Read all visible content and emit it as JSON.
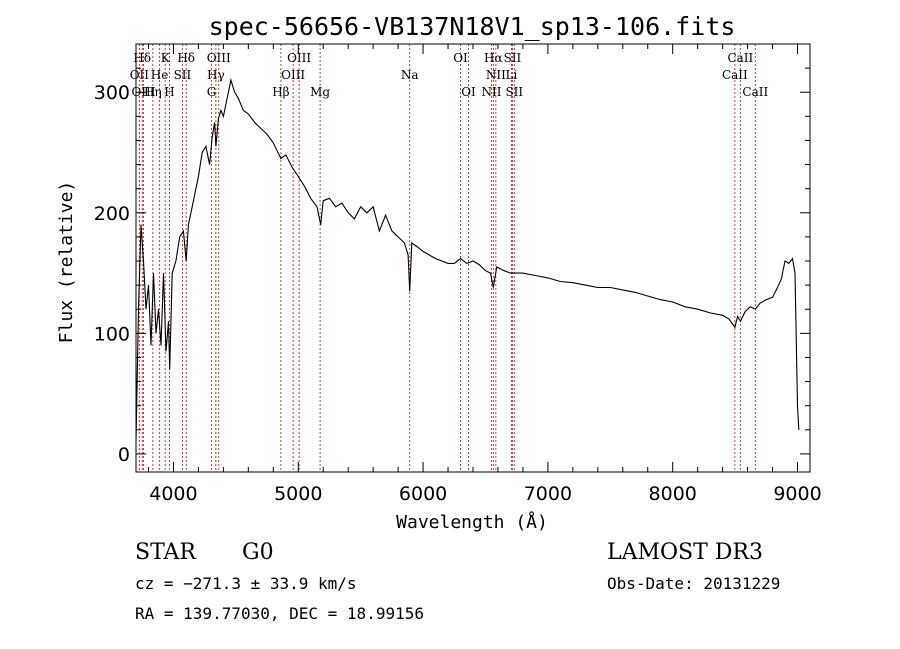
{
  "chart_data": {
    "type": "line",
    "title": "spec-56656-VB137N18V1_sp13-106.fits",
    "xlabel": "Wavelength (Å)",
    "ylabel": "Flux (relative)",
    "xlim": [
      3700,
      9100
    ],
    "ylim": [
      -15,
      340
    ],
    "xticks": [
      4000,
      5000,
      6000,
      7000,
      8000,
      9000
    ],
    "xtick_labels": [
      "4000",
      "5000",
      "6000",
      "7000",
      "8000",
      "9000"
    ],
    "yticks": [
      0,
      100,
      200,
      300
    ],
    "ytick_labels": [
      "0",
      "100",
      "200",
      "300"
    ],
    "grid": false,
    "series": [
      {
        "x": [
          3700,
          3720,
          3740,
          3760,
          3780,
          3800,
          3820,
          3840,
          3860,
          3880,
          3900,
          3920,
          3940,
          3960,
          3970,
          3990,
          4020,
          4050,
          4080,
          4102,
          4120,
          4150,
          4180,
          4200,
          4230,
          4260,
          4290,
          4310,
          4330,
          4340,
          4360,
          4380,
          4400,
          4430,
          4460,
          4490,
          4520,
          4560,
          4600,
          4650,
          4700,
          4750,
          4800,
          4861,
          4900,
          4950,
          5000,
          5050,
          5100,
          5150,
          5180,
          5200,
          5250,
          5300,
          5350,
          5400,
          5450,
          5500,
          5550,
          5600,
          5650,
          5700,
          5750,
          5800,
          5850,
          5880,
          5893,
          5910,
          5950,
          6000,
          6050,
          6100,
          6150,
          6200,
          6250,
          6300,
          6350,
          6400,
          6450,
          6500,
          6540,
          6563,
          6590,
          6650,
          6700,
          6750,
          6800,
          6900,
          7000,
          7100,
          7200,
          7300,
          7400,
          7500,
          7600,
          7700,
          7800,
          7900,
          8000,
          8100,
          8200,
          8300,
          8400,
          8450,
          8498,
          8520,
          8542,
          8580,
          8620,
          8662,
          8700,
          8750,
          8800,
          8840,
          8870,
          8900,
          8930,
          8960,
          8980,
          9000,
          9010
        ],
        "y": [
          10,
          120,
          190,
          160,
          120,
          140,
          90,
          150,
          100,
          120,
          90,
          150,
          85,
          110,
          70,
          150,
          160,
          180,
          185,
          160,
          190,
          205,
          220,
          230,
          250,
          255,
          240,
          262,
          275,
          255,
          278,
          285,
          280,
          295,
          310,
          300,
          295,
          285,
          282,
          275,
          270,
          265,
          258,
          245,
          248,
          238,
          230,
          222,
          212,
          205,
          190,
          210,
          212,
          205,
          208,
          200,
          195,
          205,
          200,
          205,
          185,
          198,
          185,
          180,
          175,
          165,
          135,
          175,
          172,
          168,
          165,
          162,
          160,
          158,
          158,
          162,
          158,
          160,
          157,
          152,
          150,
          138,
          155,
          152,
          150,
          150,
          150,
          148,
          146,
          143,
          142,
          140,
          138,
          138,
          136,
          134,
          131,
          128,
          126,
          122,
          120,
          117,
          115,
          112,
          105,
          114,
          110,
          118,
          122,
          120,
          125,
          128,
          130,
          138,
          145,
          160,
          158,
          162,
          150,
          40,
          20
        ]
      }
    ],
    "line_markers": [
      {
        "label": "Hδ",
        "x": 3750,
        "row": 0
      },
      {
        "label": "K",
        "x": 3934,
        "row": 0
      },
      {
        "label": "Hδ",
        "x": 4102,
        "row": 0
      },
      {
        "label": "OIII",
        "x": 4363,
        "row": 0
      },
      {
        "label": "OIII",
        "x": 5007,
        "row": 0
      },
      {
        "label": "OI",
        "x": 6300,
        "row": 0
      },
      {
        "label": "Hα",
        "x": 6563,
        "row": 0
      },
      {
        "label": "SII",
        "x": 6716,
        "row": 0
      },
      {
        "label": "CaII",
        "x": 8542,
        "row": 0
      },
      {
        "label": "OII",
        "x": 3727,
        "row": 1
      },
      {
        "label": "He",
        "x": 3889,
        "row": 1
      },
      {
        "label": "SII",
        "x": 4072,
        "row": 1
      },
      {
        "label": "Hγ",
        "x": 4340,
        "row": 1
      },
      {
        "label": "OIII",
        "x": 4959,
        "row": 1
      },
      {
        "label": "Na",
        "x": 5893,
        "row": 1
      },
      {
        "label": "NII",
        "x": 6583,
        "row": 1
      },
      {
        "label": "Li",
        "x": 6708,
        "row": 1
      },
      {
        "label": "CaII",
        "x": 8498,
        "row": 1
      },
      {
        "label": "OIII",
        "x": 3760,
        "row": 2
      },
      {
        "label": "Hη",
        "x": 3835,
        "row": 2
      },
      {
        "label": "H",
        "x": 3968,
        "row": 2
      },
      {
        "label": "G",
        "x": 4305,
        "row": 2
      },
      {
        "label": "Hβ",
        "x": 4861,
        "row": 2
      },
      {
        "label": "Mg",
        "x": 5175,
        "row": 2
      },
      {
        "label": "OI",
        "x": 6364,
        "row": 2
      },
      {
        "label": "NII",
        "x": 6548,
        "row": 2
      },
      {
        "label": "SII",
        "x": 6731,
        "row": 2
      },
      {
        "label": "CaII",
        "x": 8662,
        "row": 2
      }
    ],
    "marker_color": "#b03030"
  },
  "info": {
    "class_label": "STAR",
    "subclass": "G0",
    "survey": "LAMOST DR3",
    "redshift_line": "cz = −271.3 ± 33.9 km/s",
    "obs_date": "Obs-Date: 20131229",
    "coords": "RA = 139.77030, DEC =  18.99156"
  }
}
